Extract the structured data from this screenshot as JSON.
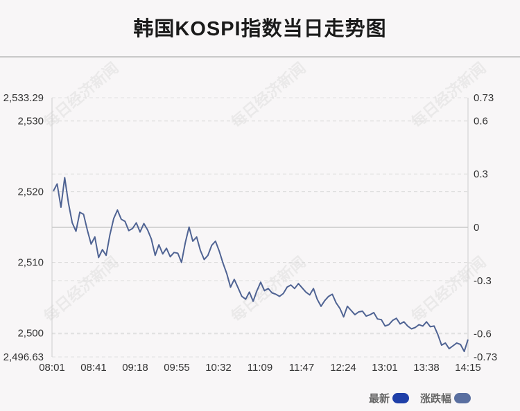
{
  "title": "韩国KOSPI指数当日走势图",
  "watermark": "每日经济新闻",
  "legend": [
    {
      "label": "最新",
      "color": "#1f3fa8"
    },
    {
      "label": "涨跌幅",
      "color": "#5a6fa0"
    }
  ],
  "chart_data": {
    "type": "line",
    "x_tick_labels": [
      "08:01",
      "08:41",
      "09:18",
      "09:55",
      "10:32",
      "11:09",
      "11:47",
      "12:24",
      "13:01",
      "13:38",
      "14:15"
    ],
    "y_left": {
      "ticks": [
        2496.63,
        2500,
        2510,
        2520,
        2530,
        2533.29
      ],
      "tick_labels": [
        "2,496.63",
        "2,500",
        "2,510",
        "2,520",
        "2,530",
        "2,533.29"
      ],
      "range": [
        2496.63,
        2533.29
      ]
    },
    "y_right": {
      "ticks": [
        -0.73,
        -0.6,
        -0.3,
        0,
        0.3,
        0.6,
        0.73
      ],
      "tick_labels": [
        "-0.73",
        "-0.6",
        "-0.3",
        "0",
        "0.3",
        "0.6",
        "0.73"
      ],
      "range": [
        -0.73,
        0.73
      ]
    },
    "prev_close": 2514.96,
    "line_color": "#4f6393",
    "series": [
      {
        "values": [
          2520.1,
          2521.1,
          2517.8,
          2522.0,
          2518.4,
          2515.6,
          2514.4,
          2517.1,
          2516.8,
          2514.6,
          2512.6,
          2513.6,
          2510.7,
          2511.8,
          2511.0,
          2513.9,
          2516.2,
          2517.4,
          2516.1,
          2515.8,
          2514.5,
          2514.8,
          2515.6,
          2514.3,
          2515.5,
          2514.6,
          2513.3,
          2511.0,
          2512.5,
          2511.2,
          2512.0,
          2510.8,
          2511.4,
          2511.3,
          2510.0,
          2512.8,
          2515.0,
          2513.0,
          2513.6,
          2511.7,
          2510.4,
          2511.0,
          2512.4,
          2513.0,
          2511.6,
          2509.9,
          2508.4,
          2506.5,
          2507.6,
          2506.4,
          2505.2,
          2504.8,
          2505.8,
          2504.5,
          2506.0,
          2507.2,
          2506.0,
          2506.3,
          2505.7,
          2505.5,
          2505.2,
          2505.6,
          2506.5,
          2506.8,
          2506.3,
          2507.0,
          2506.4,
          2505.8,
          2505.4,
          2506.3,
          2504.8,
          2503.8,
          2504.6,
          2505.2,
          2505.5,
          2504.3,
          2503.5,
          2502.3,
          2503.8,
          2503.2,
          2502.6,
          2503.0,
          2503.1,
          2502.4,
          2502.6,
          2502.9,
          2502.0,
          2501.9,
          2501.0,
          2501.2,
          2501.8,
          2502.1,
          2501.3,
          2501.6,
          2501.0,
          2500.6,
          2500.8,
          2501.2,
          2501.0,
          2501.6,
          2500.9,
          2501.0,
          2499.8,
          2498.3,
          2498.6,
          2497.8,
          2498.2,
          2498.6,
          2498.4,
          2497.4,
          2499.1
        ]
      }
    ]
  }
}
